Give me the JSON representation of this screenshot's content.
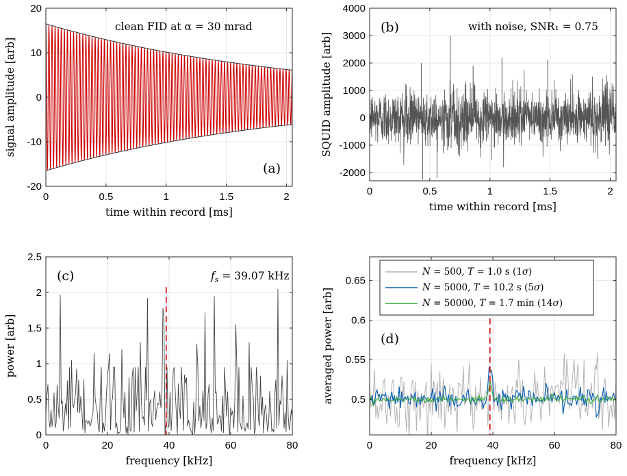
{
  "chart_data": [
    {
      "type": "line",
      "panel": "(a)",
      "annotation": "clean FID at α = 30 mrad",
      "xlabel": "time within record [ms]",
      "ylabel": "signal amplitude [arb]",
      "xlim": [
        0,
        2.048
      ],
      "ylim": [
        -20,
        20
      ],
      "xticks": [
        "0",
        "0.5",
        "1",
        "1.5",
        "2"
      ],
      "xtick_values": [
        0,
        0.5,
        1,
        1.5,
        2
      ],
      "yticks": [
        "-20",
        "-10",
        "0",
        "10",
        "20"
      ],
      "ytick_values": [
        -20,
        -10,
        0,
        10,
        20
      ],
      "grid": true,
      "envelope": {
        "amplitude_start": 16.5,
        "amplitude_end": 6.1
      },
      "colors": {
        "signal": "#cc0000",
        "envelope": "#333333"
      }
    },
    {
      "type": "line",
      "panel": "(b)",
      "annotation": "with noise, SNR₁ = 0.75",
      "xlabel": "time within record [ms]",
      "ylabel": "SQUID amplitude [arb]",
      "xlim": [
        0,
        2.048
      ],
      "ylim": [
        -2300,
        4000
      ],
      "xticks": [
        "0",
        "0.5",
        "1",
        "1.5",
        "2"
      ],
      "xtick_values": [
        0,
        0.5,
        1,
        1.5,
        2
      ],
      "yticks": [
        "-2000",
        "-1000",
        "0",
        "1000",
        "2000",
        "3000",
        "4000"
      ],
      "ytick_values": [
        -2000,
        -1000,
        0,
        1000,
        2000,
        3000,
        4000
      ],
      "grid": true,
      "noise_rms": 500,
      "spikes": [
        {
          "x": 0.43,
          "y": 2000
        },
        {
          "x": 0.67,
          "y": 3000
        },
        {
          "x": 0.86,
          "y": 1900
        },
        {
          "x": 1.1,
          "y": 2200
        },
        {
          "x": 1.48,
          "y": 2100
        },
        {
          "x": 0.44,
          "y": -2250
        },
        {
          "x": 0.56,
          "y": -2200
        }
      ],
      "colors": {
        "signal": "#555555"
      }
    },
    {
      "type": "line",
      "panel": "(c)",
      "annotation": "f_s = 39.07 kHz",
      "annotation_parts": {
        "f": "f",
        "sub": "s",
        "rest": " = 39.07 kHz"
      },
      "xlabel": "frequency [kHz]",
      "ylabel": "power [arb]",
      "xlim": [
        0,
        80
      ],
      "ylim": [
        0,
        2.5
      ],
      "xticks": [
        "0",
        "20",
        "40",
        "60",
        "80"
      ],
      "xtick_values": [
        0,
        20,
        40,
        60,
        80
      ],
      "yticks": [
        "0",
        "0.5",
        "1",
        "1.5",
        "2",
        "2.5"
      ],
      "ytick_values": [
        0,
        0.5,
        1,
        1.5,
        2,
        2.5
      ],
      "grid": true,
      "marker_x": 39.07,
      "peaks": [
        {
          "x": 4.8,
          "y": 1.97
        },
        {
          "x": 8.2,
          "y": 1.05
        },
        {
          "x": 15.5,
          "y": 1.15
        },
        {
          "x": 20.6,
          "y": 1.15
        },
        {
          "x": 24.8,
          "y": 1.2
        },
        {
          "x": 30.5,
          "y": 1.3
        },
        {
          "x": 32.9,
          "y": 1.92
        },
        {
          "x": 37.9,
          "y": 1.78
        },
        {
          "x": 38.4,
          "y": 1.65
        },
        {
          "x": 48.9,
          "y": 1.28
        },
        {
          "x": 51.5,
          "y": 1.72
        },
        {
          "x": 54.8,
          "y": 1.95
        },
        {
          "x": 61.8,
          "y": 1.55
        },
        {
          "x": 66.1,
          "y": 1.3
        },
        {
          "x": 75.3,
          "y": 2.05
        },
        {
          "x": 78.3,
          "y": 1.05
        }
      ],
      "colors": {
        "signal": "#444444",
        "marker": "#cc0000"
      }
    },
    {
      "type": "line",
      "panel": "(d)",
      "xlabel": "frequency [kHz]",
      "ylabel": "averaged power [arb]",
      "xlim": [
        0,
        80
      ],
      "ylim": [
        0.455,
        0.68
      ],
      "xticks": [
        "0",
        "20",
        "40",
        "60",
        "80"
      ],
      "xtick_values": [
        0,
        20,
        40,
        60,
        80
      ],
      "yticks": [
        "0.5",
        "0.55",
        "0.6",
        "0.65"
      ],
      "ytick_values": [
        0.5,
        0.55,
        0.6,
        0.65
      ],
      "grid": true,
      "marker_x": 39.07,
      "baseline": 0.5,
      "series": [
        {
          "name_parts": {
            "v": "N",
            "a": " = 500, ",
            "t": "T",
            "b": " = 1.0 s (1",
            "s": "σ",
            "c": ")"
          },
          "name": "N = 500, T = 1.0 s (1σ)",
          "noise": 0.022,
          "peak": 0.521,
          "color": "#b3b3b3"
        },
        {
          "name_parts": {
            "v": "N",
            "a": " = 5000, ",
            "t": "T",
            "b": " = 10.2 s (5",
            "s": "σ",
            "c": ")"
          },
          "name": "N = 5000, T = 10.2 s (5σ)",
          "noise": 0.007,
          "peak": 0.535,
          "color": "#0a5fb4"
        },
        {
          "name_parts": {
            "v": "N",
            "a": " = 50000, ",
            "t": "T",
            "b": " = 1.7 min (14",
            "s": "σ",
            "c": ")"
          },
          "name": "N = 50000, T = 1.7 min (14σ)",
          "noise": 0.0022,
          "peak": 0.521,
          "color": "#3aa83a"
        }
      ],
      "legend_position": "top",
      "colors": {
        "marker": "#cc0000"
      }
    }
  ]
}
